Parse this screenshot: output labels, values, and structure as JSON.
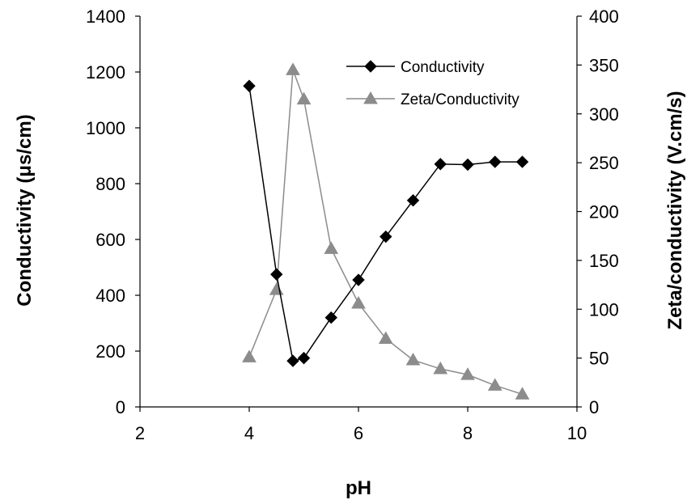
{
  "chart_data": {
    "type": "line",
    "title": "",
    "xlabel": "pH",
    "ylabel": "Conductivity (μs/cm)",
    "y2label": "Zeta/conductivity (V.cm/s)",
    "xlim": [
      2,
      10
    ],
    "ylim": [
      0,
      1400
    ],
    "y2lim": [
      0,
      400
    ],
    "xticks": [
      2,
      4,
      6,
      8,
      10
    ],
    "yticks": [
      0,
      200,
      400,
      600,
      800,
      1000,
      1200,
      1400
    ],
    "y2ticks": [
      0,
      50,
      100,
      150,
      200,
      250,
      300,
      350,
      400
    ],
    "grid": false,
    "legend_position": "top-right",
    "series": [
      {
        "name": "Conductivity",
        "axis": "left",
        "marker": "diamond",
        "color": "#000000",
        "x": [
          4,
          4.5,
          4.8,
          5,
          5.5,
          6,
          6.5,
          7,
          7.5,
          8,
          8.5,
          9
        ],
        "y": [
          1150,
          475,
          165,
          175,
          320,
          455,
          610,
          740,
          870,
          868,
          878,
          878
        ]
      },
      {
        "name": "Zeta/Conductivity",
        "axis": "right",
        "marker": "triangle",
        "color": "#8c8c8c",
        "x": [
          4,
          4.5,
          4.8,
          5,
          5.5,
          6,
          6.5,
          7,
          7.5,
          8,
          8.5,
          9
        ],
        "y": [
          51,
          120,
          345,
          315,
          162,
          106,
          70,
          48,
          39,
          33,
          22,
          13
        ]
      }
    ]
  }
}
